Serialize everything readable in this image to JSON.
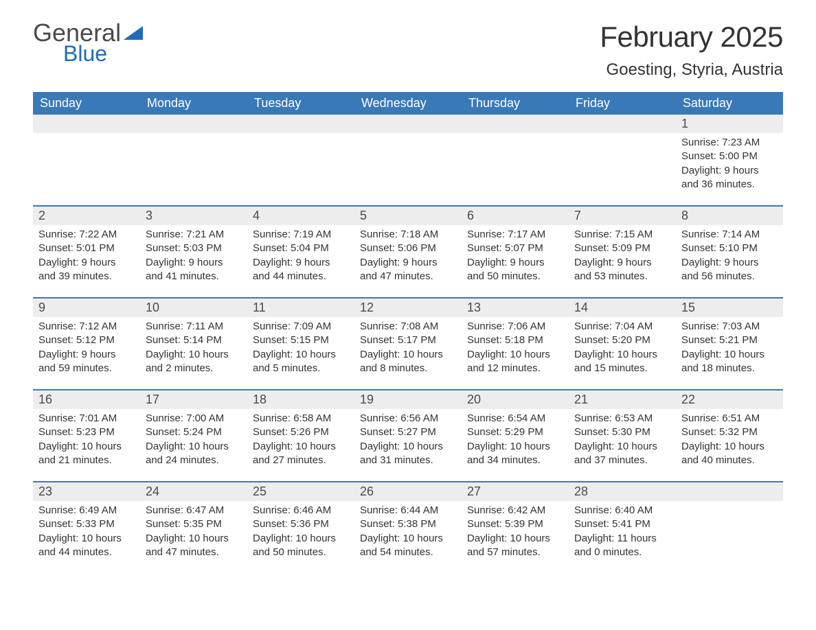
{
  "brand": {
    "word1": "General",
    "word2": "Blue",
    "logo_color": "#1f6bb7",
    "text_color_general": "#4a4a4a"
  },
  "header": {
    "title": "February 2025",
    "location": "Goesting, Styria, Austria"
  },
  "colors": {
    "dow_bg": "#3a79b7",
    "dow_text": "#ffffff",
    "week_border": "#3a79b7",
    "daynum_bg": "#ededed",
    "body_text": "#333333",
    "page_bg": "#ffffff"
  },
  "daysOfWeek": [
    "Sunday",
    "Monday",
    "Tuesday",
    "Wednesday",
    "Thursday",
    "Friday",
    "Saturday"
  ],
  "labels": {
    "sunrise": "Sunrise",
    "sunset": "Sunset",
    "daylight": "Daylight"
  },
  "startOffset": 6,
  "days": [
    {
      "n": 1,
      "sunrise": "7:23 AM",
      "sunset": "5:00 PM",
      "daylight": "9 hours and 36 minutes."
    },
    {
      "n": 2,
      "sunrise": "7:22 AM",
      "sunset": "5:01 PM",
      "daylight": "9 hours and 39 minutes."
    },
    {
      "n": 3,
      "sunrise": "7:21 AM",
      "sunset": "5:03 PM",
      "daylight": "9 hours and 41 minutes."
    },
    {
      "n": 4,
      "sunrise": "7:19 AM",
      "sunset": "5:04 PM",
      "daylight": "9 hours and 44 minutes."
    },
    {
      "n": 5,
      "sunrise": "7:18 AM",
      "sunset": "5:06 PM",
      "daylight": "9 hours and 47 minutes."
    },
    {
      "n": 6,
      "sunrise": "7:17 AM",
      "sunset": "5:07 PM",
      "daylight": "9 hours and 50 minutes."
    },
    {
      "n": 7,
      "sunrise": "7:15 AM",
      "sunset": "5:09 PM",
      "daylight": "9 hours and 53 minutes."
    },
    {
      "n": 8,
      "sunrise": "7:14 AM",
      "sunset": "5:10 PM",
      "daylight": "9 hours and 56 minutes."
    },
    {
      "n": 9,
      "sunrise": "7:12 AM",
      "sunset": "5:12 PM",
      "daylight": "9 hours and 59 minutes."
    },
    {
      "n": 10,
      "sunrise": "7:11 AM",
      "sunset": "5:14 PM",
      "daylight": "10 hours and 2 minutes."
    },
    {
      "n": 11,
      "sunrise": "7:09 AM",
      "sunset": "5:15 PM",
      "daylight": "10 hours and 5 minutes."
    },
    {
      "n": 12,
      "sunrise": "7:08 AM",
      "sunset": "5:17 PM",
      "daylight": "10 hours and 8 minutes."
    },
    {
      "n": 13,
      "sunrise": "7:06 AM",
      "sunset": "5:18 PM",
      "daylight": "10 hours and 12 minutes."
    },
    {
      "n": 14,
      "sunrise": "7:04 AM",
      "sunset": "5:20 PM",
      "daylight": "10 hours and 15 minutes."
    },
    {
      "n": 15,
      "sunrise": "7:03 AM",
      "sunset": "5:21 PM",
      "daylight": "10 hours and 18 minutes."
    },
    {
      "n": 16,
      "sunrise": "7:01 AM",
      "sunset": "5:23 PM",
      "daylight": "10 hours and 21 minutes."
    },
    {
      "n": 17,
      "sunrise": "7:00 AM",
      "sunset": "5:24 PM",
      "daylight": "10 hours and 24 minutes."
    },
    {
      "n": 18,
      "sunrise": "6:58 AM",
      "sunset": "5:26 PM",
      "daylight": "10 hours and 27 minutes."
    },
    {
      "n": 19,
      "sunrise": "6:56 AM",
      "sunset": "5:27 PM",
      "daylight": "10 hours and 31 minutes."
    },
    {
      "n": 20,
      "sunrise": "6:54 AM",
      "sunset": "5:29 PM",
      "daylight": "10 hours and 34 minutes."
    },
    {
      "n": 21,
      "sunrise": "6:53 AM",
      "sunset": "5:30 PM",
      "daylight": "10 hours and 37 minutes."
    },
    {
      "n": 22,
      "sunrise": "6:51 AM",
      "sunset": "5:32 PM",
      "daylight": "10 hours and 40 minutes."
    },
    {
      "n": 23,
      "sunrise": "6:49 AM",
      "sunset": "5:33 PM",
      "daylight": "10 hours and 44 minutes."
    },
    {
      "n": 24,
      "sunrise": "6:47 AM",
      "sunset": "5:35 PM",
      "daylight": "10 hours and 47 minutes."
    },
    {
      "n": 25,
      "sunrise": "6:46 AM",
      "sunset": "5:36 PM",
      "daylight": "10 hours and 50 minutes."
    },
    {
      "n": 26,
      "sunrise": "6:44 AM",
      "sunset": "5:38 PM",
      "daylight": "10 hours and 54 minutes."
    },
    {
      "n": 27,
      "sunrise": "6:42 AM",
      "sunset": "5:39 PM",
      "daylight": "10 hours and 57 minutes."
    },
    {
      "n": 28,
      "sunrise": "6:40 AM",
      "sunset": "5:41 PM",
      "daylight": "11 hours and 0 minutes."
    }
  ]
}
